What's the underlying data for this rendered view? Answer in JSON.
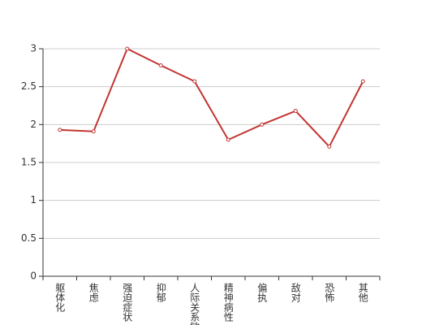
{
  "chart_data": {
    "type": "line",
    "categories": [
      "躯体化",
      "焦虑",
      "强迫症状",
      "抑郁",
      "人际关系敏感",
      "精神病性",
      "偏执",
      "敌对",
      "恐怖",
      "其他"
    ],
    "values": [
      1.93,
      1.91,
      3.0,
      2.78,
      2.57,
      1.8,
      2.0,
      2.18,
      1.71,
      2.57
    ],
    "color": "#c23531",
    "ylim": [
      0,
      3
    ],
    "yticks": [
      0,
      0.5,
      1,
      1.5,
      2,
      2.5,
      3
    ],
    "grid": true
  }
}
